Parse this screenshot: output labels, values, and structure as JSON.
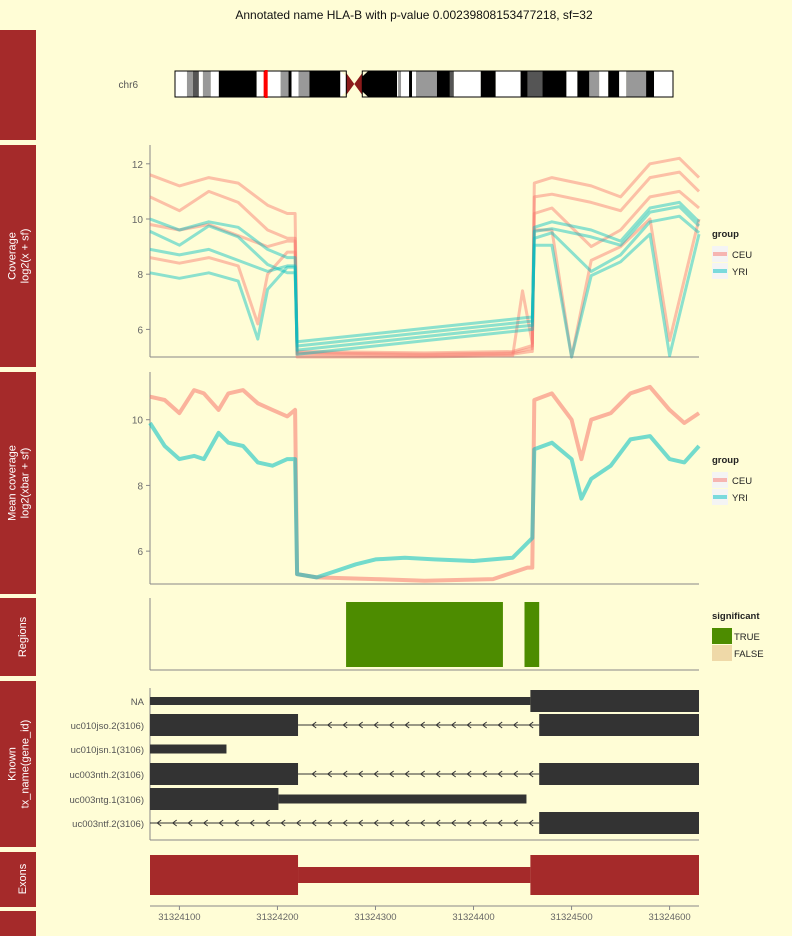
{
  "title": "Annotated name HLA-B with p-value 0.00239808153477218, sf=32",
  "chromosome": {
    "label": "chr6",
    "bands": [
      [
        "w",
        0.0
      ],
      [
        "g",
        0.024
      ],
      [
        "d",
        0.036
      ],
      [
        "w",
        0.048
      ],
      [
        "g",
        0.056
      ],
      [
        "w",
        0.072
      ],
      [
        "k",
        0.088
      ],
      [
        "w",
        0.164
      ],
      [
        "r",
        0.178
      ],
      [
        "w",
        0.186
      ],
      [
        "g",
        0.212
      ],
      [
        "k",
        0.228
      ],
      [
        "w",
        0.234
      ],
      [
        "g",
        0.248
      ],
      [
        "k",
        0.27
      ],
      [
        "w",
        0.332
      ],
      [
        "k",
        0.37
      ],
      [
        "w",
        0.446
      ],
      [
        "g",
        0.448
      ],
      [
        "w",
        0.454
      ],
      [
        "k",
        0.47
      ],
      [
        "w",
        0.476
      ],
      [
        "g",
        0.484
      ],
      [
        "k",
        0.526
      ],
      [
        "d",
        0.552
      ],
      [
        "w",
        0.56
      ],
      [
        "k",
        0.614
      ],
      [
        "w",
        0.644
      ],
      [
        "k",
        0.694
      ],
      [
        "d",
        0.708
      ],
      [
        "k",
        0.738
      ],
      [
        "w",
        0.786
      ],
      [
        "k",
        0.808
      ],
      [
        "g",
        0.832
      ],
      [
        "w",
        0.852
      ],
      [
        "k",
        0.87
      ],
      [
        "w",
        0.892
      ],
      [
        "g",
        0.906
      ],
      [
        "k",
        0.946
      ],
      [
        "w",
        0.962
      ],
      [
        "end",
        1.0
      ]
    ],
    "centromere": 0.36
  },
  "panels": {
    "coverage": {
      "strip": "Coverage\nlog2(x + sf)",
      "yticks": [
        6,
        8,
        10,
        12
      ]
    },
    "mean": {
      "strip": "Mean coverage\nlog2(xbar + sf)",
      "yticks": [
        6,
        8,
        10
      ]
    },
    "regions": {
      "strip": "Regions"
    },
    "known": {
      "strip": "Known\ntx_name(gene_id)"
    },
    "exons": {
      "strip": "Exons"
    }
  },
  "legend_group": {
    "title": "group",
    "items": [
      {
        "label": "CEU",
        "color": "#f8766d"
      },
      {
        "label": "YRI",
        "color": "#00bfc4"
      }
    ]
  },
  "legend_significant": {
    "title": "significant",
    "items": [
      {
        "label": "TRUE",
        "color": "#4d8c00"
      },
      {
        "label": "FALSE",
        "color": "#efd9a8"
      }
    ]
  },
  "x_axis": {
    "range": [
      31324070,
      31324630
    ],
    "ticks": [
      31324100,
      31324200,
      31324300,
      31324400,
      31324500,
      31324600
    ]
  },
  "chart_data": {
    "type": "line",
    "coverage": {
      "ylim": [
        5,
        12.5
      ],
      "series": [
        {
          "group": "CEU",
          "values": [
            [
              31324070,
              11.6
            ],
            [
              31324100,
              11.2
            ],
            [
              31324130,
              11.5
            ],
            [
              31324160,
              11.3
            ],
            [
              31324190,
              10.5
            ],
            [
              31324210,
              10.2
            ],
            [
              31324218,
              10.2
            ],
            [
              31324220,
              5.2
            ],
            [
              31324350,
              5.15
            ],
            [
              31324440,
              5.2
            ],
            [
              31324458,
              5.4
            ],
            [
              31324460,
              5.4
            ],
            [
              31324462,
              11.3
            ],
            [
              31324480,
              11.5
            ],
            [
              31324520,
              11.2
            ],
            [
              31324550,
              10.8
            ],
            [
              31324580,
              12.0
            ],
            [
              31324610,
              12.2
            ],
            [
              31324630,
              11.5
            ]
          ]
        },
        {
          "group": "CEU",
          "values": [
            [
              31324070,
              10.8
            ],
            [
              31324100,
              10.3
            ],
            [
              31324130,
              11.0
            ],
            [
              31324160,
              10.6
            ],
            [
              31324190,
              9.6
            ],
            [
              31324210,
              9.3
            ],
            [
              31324218,
              9.3
            ],
            [
              31324220,
              5.15
            ],
            [
              31324350,
              5.1
            ],
            [
              31324440,
              5.15
            ],
            [
              31324458,
              5.3
            ],
            [
              31324460,
              5.3
            ],
            [
              31324462,
              10.8
            ],
            [
              31324480,
              10.9
            ],
            [
              31324520,
              10.6
            ],
            [
              31324550,
              10.3
            ],
            [
              31324580,
              11.5
            ],
            [
              31324610,
              11.7
            ],
            [
              31324630,
              11.0
            ]
          ]
        },
        {
          "group": "CEU",
          "values": [
            [
              31324070,
              9.8
            ],
            [
              31324100,
              9.6
            ],
            [
              31324130,
              9.8
            ],
            [
              31324160,
              9.4
            ],
            [
              31324190,
              9.0
            ],
            [
              31324210,
              9.2
            ],
            [
              31324218,
              9.2
            ],
            [
              31324220,
              5.1
            ],
            [
              31324350,
              5.05
            ],
            [
              31324440,
              5.1
            ],
            [
              31324458,
              5.2
            ],
            [
              31324460,
              5.2
            ],
            [
              31324462,
              10.2
            ],
            [
              31324480,
              10.4
            ],
            [
              31324520,
              9.0
            ],
            [
              31324550,
              9.6
            ],
            [
              31324580,
              10.8
            ],
            [
              31324610,
              11.0
            ],
            [
              31324630,
              10.4
            ]
          ]
        },
        {
          "group": "CEU",
          "values": [
            [
              31324070,
              8.6
            ],
            [
              31324100,
              8.4
            ],
            [
              31324130,
              8.6
            ],
            [
              31324160,
              8.3
            ],
            [
              31324180,
              6.2
            ],
            [
              31324190,
              8.0
            ],
            [
              31324210,
              8.8
            ],
            [
              31324218,
              8.8
            ],
            [
              31324220,
              5.0
            ],
            [
              31324350,
              5.0
            ],
            [
              31324440,
              5.05
            ],
            [
              31324450,
              7.4
            ],
            [
              31324460,
              5.5
            ],
            [
              31324462,
              9.6
            ],
            [
              31324480,
              9.6
            ],
            [
              31324500,
              5.0
            ],
            [
              31324520,
              8.5
            ],
            [
              31324550,
              9.0
            ],
            [
              31324580,
              10.0
            ],
            [
              31324600,
              5.6
            ],
            [
              31324630,
              10.0
            ]
          ]
        }
      ]
    },
    "mean_coverage": {
      "ylim": [
        5,
        11.3
      ],
      "series": [
        {
          "name": "CEU",
          "values": [
            [
              31324070,
              10.7
            ],
            [
              31324085,
              10.6
            ],
            [
              31324100,
              10.2
            ],
            [
              31324115,
              10.9
            ],
            [
              31324125,
              10.8
            ],
            [
              31324140,
              10.3
            ],
            [
              31324150,
              10.8
            ],
            [
              31324165,
              10.9
            ],
            [
              31324180,
              10.5
            ],
            [
              31324195,
              10.3
            ],
            [
              31324210,
              10.1
            ],
            [
              31324218,
              10.3
            ],
            [
              31324220,
              5.3
            ],
            [
              31324240,
              5.2
            ],
            [
              31324300,
              5.15
            ],
            [
              31324350,
              5.1
            ],
            [
              31324420,
              5.15
            ],
            [
              31324455,
              5.5
            ],
            [
              31324460,
              5.5
            ],
            [
              31324462,
              10.6
            ],
            [
              31324480,
              10.8
            ],
            [
              31324500,
              10.0
            ],
            [
              31324510,
              8.8
            ],
            [
              31324520,
              10.0
            ],
            [
              31324540,
              10.2
            ],
            [
              31324560,
              10.8
            ],
            [
              31324580,
              11.0
            ],
            [
              31324600,
              10.3
            ],
            [
              31324615,
              9.9
            ],
            [
              31324630,
              10.2
            ]
          ]
        },
        {
          "name": "YRI",
          "values": [
            [
              31324070,
              9.9
            ],
            [
              31324085,
              9.2
            ],
            [
              31324100,
              8.8
            ],
            [
              31324115,
              8.9
            ],
            [
              31324125,
              8.8
            ],
            [
              31324140,
              9.6
            ],
            [
              31324150,
              9.3
            ],
            [
              31324165,
              9.2
            ],
            [
              31324180,
              8.7
            ],
            [
              31324195,
              8.6
            ],
            [
              31324210,
              8.8
            ],
            [
              31324218,
              8.8
            ],
            [
              31324220,
              5.3
            ],
            [
              31324240,
              5.2
            ],
            [
              31324260,
              5.4
            ],
            [
              31324280,
              5.6
            ],
            [
              31324300,
              5.75
            ],
            [
              31324330,
              5.8
            ],
            [
              31324360,
              5.75
            ],
            [
              31324400,
              5.7
            ],
            [
              31324440,
              5.8
            ],
            [
              31324460,
              6.4
            ],
            [
              31324462,
              9.1
            ],
            [
              31324480,
              9.3
            ],
            [
              31324500,
              8.8
            ],
            [
              31324510,
              7.6
            ],
            [
              31324520,
              8.2
            ],
            [
              31324540,
              8.6
            ],
            [
              31324560,
              9.4
            ],
            [
              31324580,
              9.5
            ],
            [
              31324600,
              8.8
            ],
            [
              31324615,
              8.7
            ],
            [
              31324630,
              9.2
            ]
          ]
        }
      ]
    },
    "regions": [
      {
        "start": 31324270,
        "end": 31324430,
        "significant": true
      },
      {
        "start": 31324452,
        "end": 31324467,
        "significant": true
      }
    ],
    "transcripts": [
      {
        "name": "NA",
        "features": [
          [
            31324070,
            31324458,
            "thin"
          ],
          [
            31324458,
            31324630,
            "thick"
          ]
        ]
      },
      {
        "name": "uc010jso.2(3106)",
        "features": [
          [
            31324070,
            31324221,
            "thick"
          ],
          [
            31324221,
            31324467,
            "intron"
          ],
          [
            31324467,
            31324630,
            "thick"
          ]
        ]
      },
      {
        "name": "uc010jsn.1(3106)",
        "features": [
          [
            31324070,
            31324148,
            "mid"
          ]
        ]
      },
      {
        "name": "uc003nth.2(3106)",
        "features": [
          [
            31324070,
            31324221,
            "thick"
          ],
          [
            31324221,
            31324467,
            "intron"
          ],
          [
            31324467,
            31324630,
            "thick"
          ]
        ]
      },
      {
        "name": "uc003ntg.1(3106)",
        "features": [
          [
            31324070,
            31324201,
            "thick"
          ],
          [
            31324201,
            31324454,
            "mid"
          ]
        ]
      },
      {
        "name": "uc003ntf.2(3106)",
        "features": [
          [
            31324070,
            31324467,
            "intron"
          ],
          [
            31324467,
            31324630,
            "thick"
          ]
        ]
      }
    ],
    "exons": [
      [
        31324070,
        31324221,
        "thick"
      ],
      [
        31324221,
        31324458,
        "mid"
      ],
      [
        31324458,
        31324630,
        "thick"
      ]
    ]
  }
}
